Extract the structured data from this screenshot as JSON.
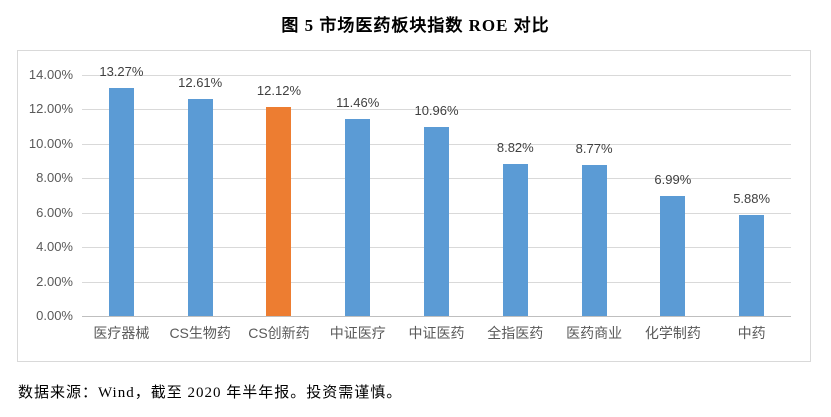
{
  "page_title": "图 5 市场医药板块指数 ROE 对比",
  "source_note": "数据来源：Wind，截至 2020 年半年报。投资需谨慎。",
  "chart_data": {
    "type": "bar",
    "title": "图 5 市场医药板块指数 ROE 对比",
    "categories": [
      "医疗器械",
      "CS生物药",
      "CS创新药",
      "中证医疗",
      "中证医药",
      "全指医药",
      "医药商业",
      "化学制药",
      "中药"
    ],
    "values": [
      13.27,
      12.61,
      12.12,
      11.46,
      10.96,
      8.82,
      8.77,
      6.99,
      5.88
    ],
    "data_labels": [
      "13.27%",
      "12.61%",
      "12.12%",
      "11.46%",
      "10.96%",
      "8.82%",
      "8.77%",
      "6.99%",
      "5.88%"
    ],
    "unit": "%",
    "xlabel": "",
    "ylabel": "",
    "ylim": [
      0,
      14
    ],
    "ytick_step": 2,
    "yticks": [
      "0.00%",
      "2.00%",
      "4.00%",
      "6.00%",
      "8.00%",
      "10.00%",
      "12.00%",
      "14.00%"
    ],
    "grid": true,
    "legend": "none",
    "bar_color": "#5B9BD5",
    "highlight_color": "#ED7D31",
    "highlight_index": 2,
    "gridline_color": "#D9D9D9",
    "axis_line_color": "#BFBFBF",
    "tick_label_color": "#595959",
    "data_label_color": "#404040"
  }
}
